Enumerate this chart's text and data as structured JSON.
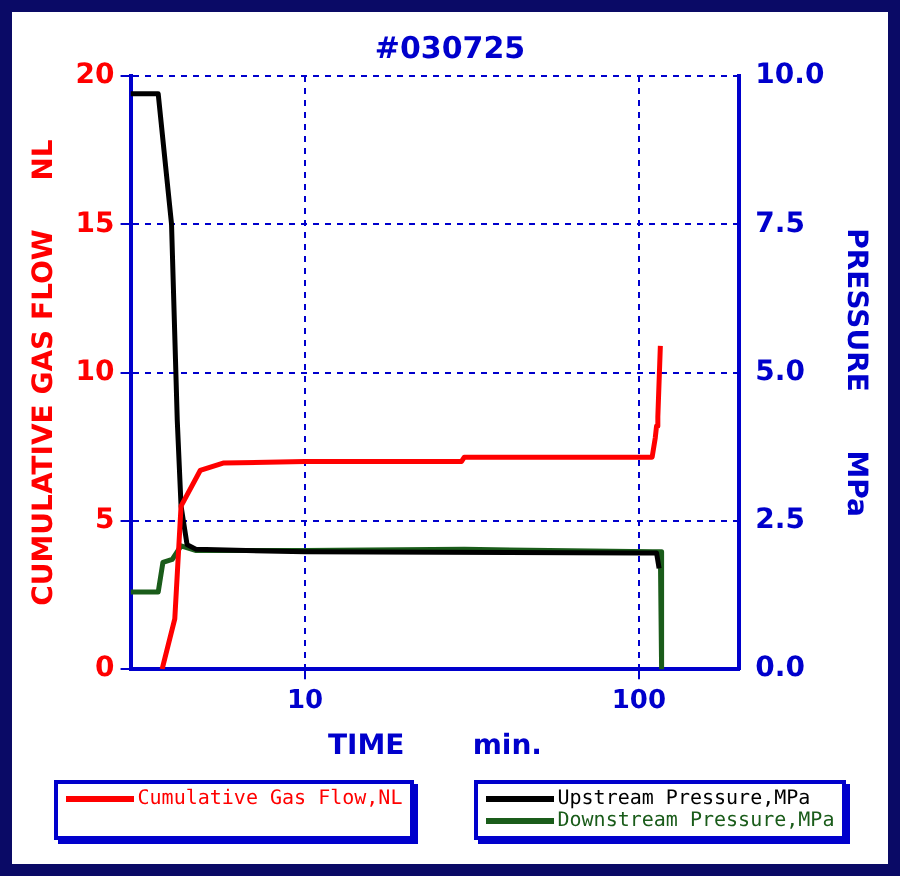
{
  "chart_data": {
    "type": "line",
    "title": "#030725",
    "xlabel": "TIME       min.",
    "ylabel": "CUMULATIVE GAS FLOW     NL",
    "y2label": "PRESSURE      MPa",
    "log": "x",
    "xlim": [
      3,
      200
    ],
    "xticks": [
      10,
      100
    ],
    "ylim": [
      0,
      20
    ],
    "yticks": [
      0,
      5,
      10,
      15,
      20
    ],
    "y2lim": [
      0,
      10
    ],
    "y2ticks": [
      {
        "value": 0,
        "label": "0.0"
      },
      2.5,
      {
        "value": 5,
        "label": "5.0"
      },
      7.5,
      {
        "value": 10,
        "label": "10.0"
      }
    ],
    "grid": true,
    "legend": "bottom",
    "marker": "none",
    "line_style": "solid",
    "series": [
      {
        "name": "Cumulative Gas Flow,NL",
        "color": "#ff0000",
        "x": [
          3.73,
          4.07,
          4.25,
          4.85,
          5.68,
          10,
          29.4,
          30,
          109.6,
          112,
          113,
          114,
          116
        ],
        "values": [
          0,
          1.7,
          5.5,
          6.7,
          6.95,
          7.0,
          7.0,
          7.15,
          7.15,
          7.8,
          8.2,
          8.5,
          10.9
        ]
      },
      {
        "name": "Upstream Pressure,MPa",
        "color": "#000000",
        "axis": "y2",
        "x": [
          3,
          3.63,
          3.98,
          4.14,
          4.25,
          4.43,
          4.72,
          10,
          100,
          113,
          115
        ],
        "values": [
          9.7,
          9.7,
          7.5,
          4.2,
          2.75,
          2.1,
          2.02,
          1.98,
          1.96,
          1.96,
          1.7
        ]
      },
      {
        "name": "Downstream Pressure,MPa",
        "color": "#1a5c1a",
        "axis": "y2",
        "x": [
          3,
          3.63,
          3.75,
          4.0,
          4.25,
          4.72,
          10,
          30,
          110,
          116,
          117
        ],
        "values": [
          1.3,
          1.3,
          1.8,
          1.85,
          2.08,
          2.0,
          2.0,
          2.02,
          1.98,
          1.98,
          0
        ]
      }
    ]
  }
}
